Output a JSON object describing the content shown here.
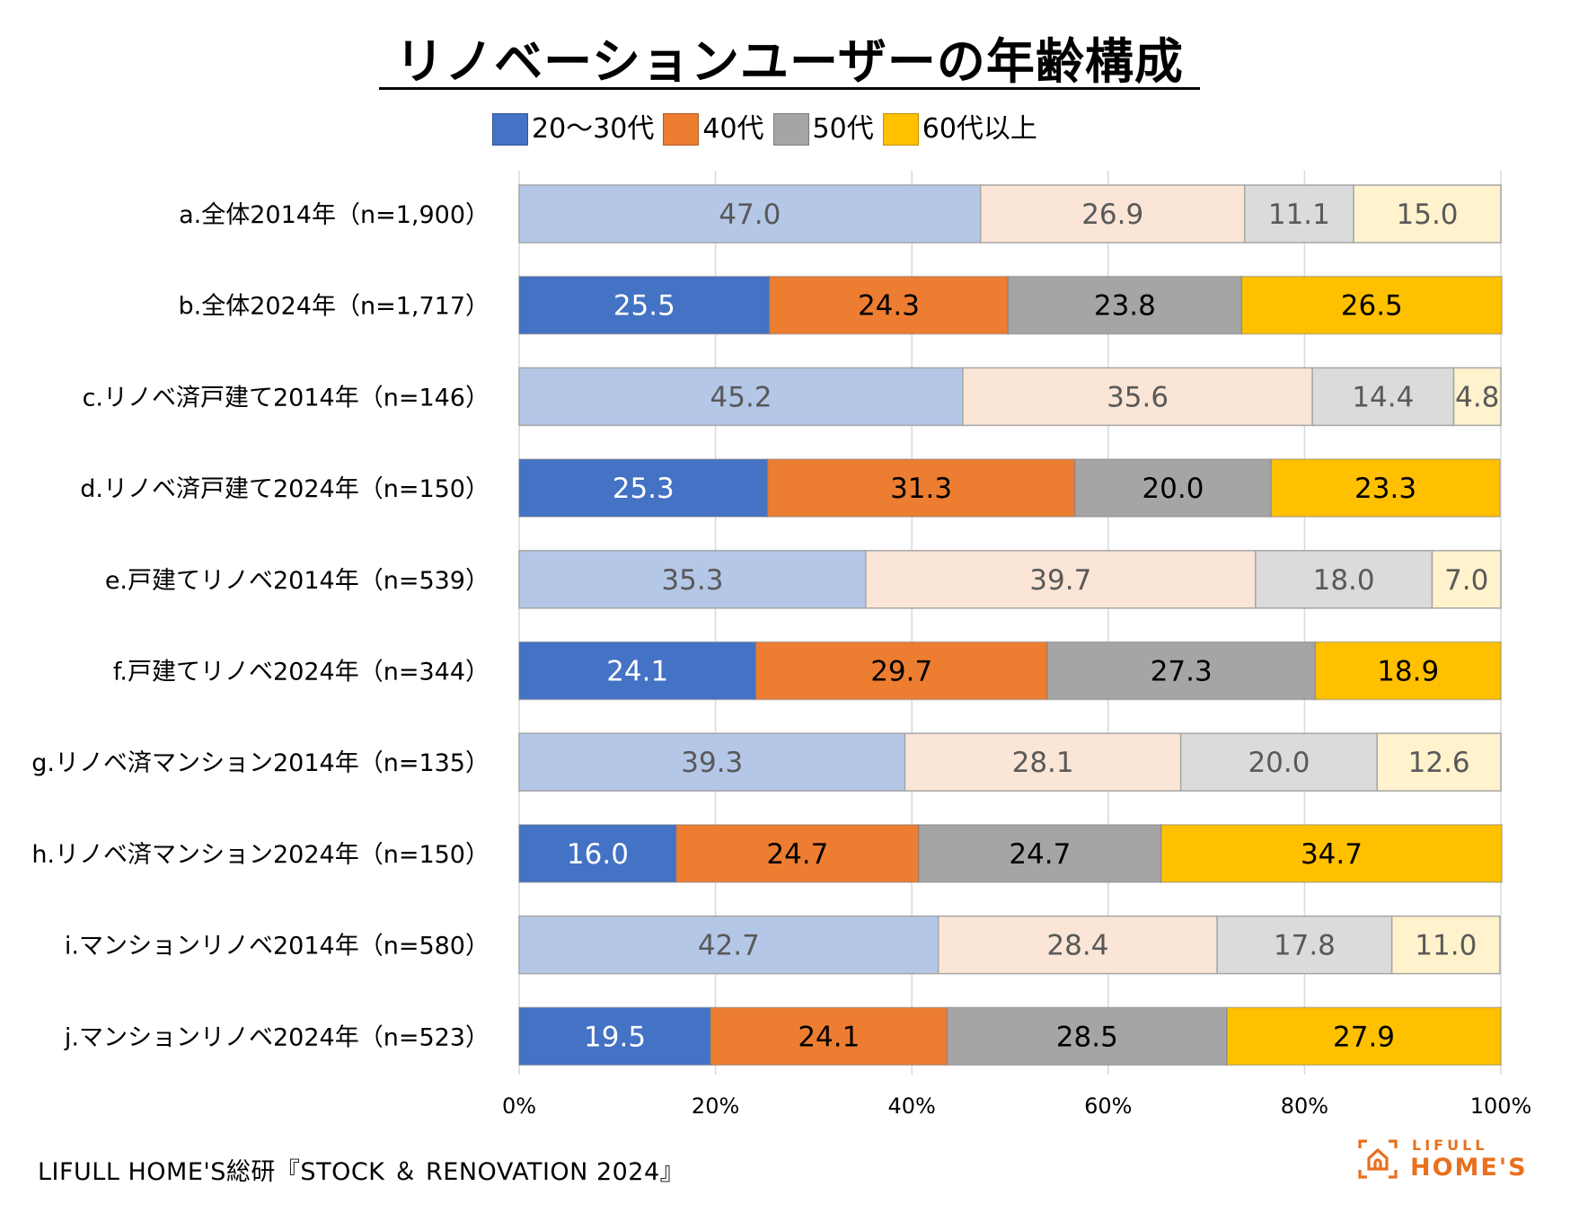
{
  "chart_data": {
    "type": "bar",
    "orientation": "horizontal",
    "stacked": "percent",
    "title": "リノベーションユーザーの年齢構成",
    "xlabel": "",
    "ylabel": "",
    "xlim": [
      0,
      100
    ],
    "x_ticks": [
      "0%",
      "20%",
      "40%",
      "60%",
      "80%",
      "100%"
    ],
    "grid": "vertical",
    "legend_position": "top",
    "categories": [
      "a.全体2014年（n=1,900）",
      "b.全体2024年（n=1,717）",
      "c.リノベ済戸建て2014年（n=146）",
      "d.リノベ済戸建て2024年（n=150）",
      "e.戸建てリノベ2014年（n=539）",
      "f.戸建てリノベ2024年（n=344）",
      "g.リノベ済マンション2014年（n=135）",
      "h.リノベ済マンション2024年（n=150）",
      "i.マンションリノベ2014年（n=580）",
      "j.マンションリノベ2024年（n=523）"
    ],
    "highlighted_rows": [
      false,
      true,
      false,
      true,
      false,
      true,
      false,
      true,
      false,
      true
    ],
    "series": [
      {
        "name": "20～30代",
        "color": "#4472c4",
        "light_color": "#b4c7e7",
        "text_color": "#ffffff",
        "values": [
          47.0,
          25.5,
          45.2,
          25.3,
          35.3,
          24.1,
          39.3,
          16.0,
          42.7,
          19.5
        ]
      },
      {
        "name": "40代",
        "color": "#ed7d31",
        "light_color": "#fbe5d6",
        "text_color": "#000000",
        "values": [
          26.9,
          24.3,
          35.6,
          31.3,
          39.7,
          29.7,
          28.1,
          24.7,
          28.4,
          24.1
        ]
      },
      {
        "name": "50代",
        "color": "#a5a5a5",
        "light_color": "#dbdbdb",
        "text_color": "#000000",
        "values": [
          11.1,
          23.8,
          14.4,
          20.0,
          18.0,
          27.3,
          20.0,
          24.7,
          17.8,
          28.5
        ]
      },
      {
        "name": "60代以上",
        "color": "#ffc000",
        "light_color": "#fff2cc",
        "text_color": "#000000",
        "values": [
          15.0,
          26.5,
          4.8,
          23.3,
          7.0,
          18.9,
          12.6,
          34.7,
          11.0,
          27.9
        ]
      }
    ],
    "light_text_color": "#595959"
  },
  "source": "LIFULL HOME'S総研『STOCK ＆ RENOVATION 2024』",
  "logo": {
    "top": "LIFULL",
    "bottom": "HOME'S",
    "color": "#e8701e"
  }
}
